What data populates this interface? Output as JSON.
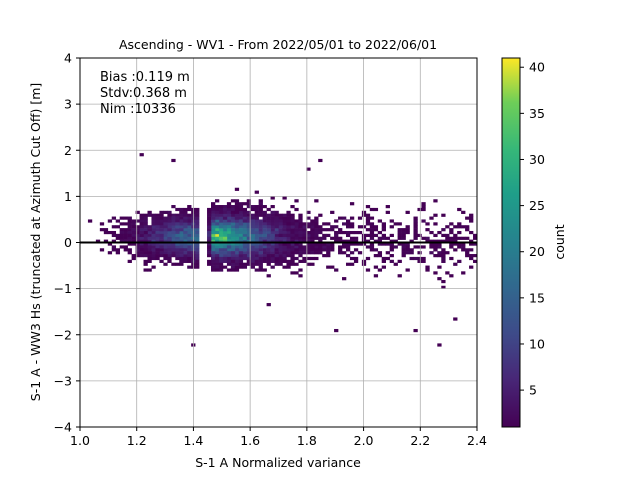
{
  "chart_data": {
    "type": "heatmap",
    "title": "Ascending - WV1 - From 2022/05/01 to 2022/06/01",
    "xlabel": "S-1 A Normalized variance",
    "ylabel": "S-1 A - WW3 Hs (truncated at Azimuth Cut Off) [m]",
    "xlim": [
      1.0,
      2.4
    ],
    "ylim": [
      -4,
      4
    ],
    "x_ticks": [
      "1.0",
      "1.2",
      "1.4",
      "1.6",
      "1.8",
      "2.0",
      "2.2",
      "2.4"
    ],
    "y_ticks": [
      "4",
      "3",
      "2",
      "1",
      "0",
      "−1",
      "−2",
      "−3",
      "−4"
    ],
    "grid": true,
    "colormap": "viridis",
    "colorbar": {
      "label": "count",
      "range": [
        1,
        41
      ],
      "ticks": [
        "40",
        "35",
        "30",
        "25",
        "20",
        "15",
        "10",
        "5"
      ]
    },
    "zero_line": 0,
    "annotations": [
      "Bias :0.119 m",
      "Stdv:0.368 m",
      "Nim :10336"
    ],
    "density_model": {
      "center_x": 1.42,
      "center_y": 0.12,
      "peak_count": 40,
      "n_samples": 10336,
      "bias": 0.119,
      "stdv": 0.368
    }
  }
}
